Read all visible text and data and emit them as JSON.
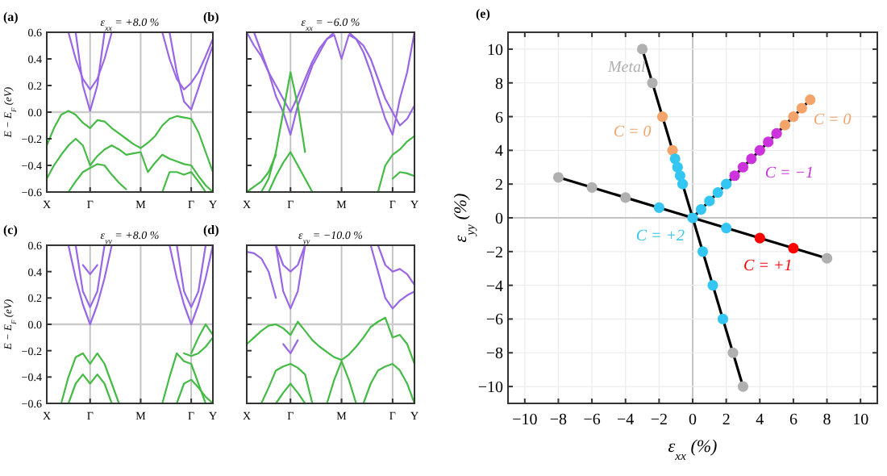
{
  "chart_data": [
    {
      "type": "line",
      "title": "ε$_{xx}$ = +8.0 %",
      "ylabel": "E − E$_{F}$ (eV)",
      "annotations": [
        "(a)"
      ],
      "ylim": [
        -0.6,
        0.6
      ],
      "categories": [
        "X",
        null,
        null,
        null,
        null,
        null,
        "Γ",
        null,
        null,
        null,
        null,
        null,
        null,
        "M",
        null,
        null,
        null,
        null,
        null,
        null,
        "Γ",
        null,
        null,
        "Y"
      ],
      "yticks": [
        {
          "value": -0.6,
          "label": "−0.6"
        },
        {
          "value": -0.4,
          "label": "−0.4"
        },
        {
          "value": -0.2,
          "label": "−0.2"
        },
        {
          "value": 0,
          "label": "0.0"
        },
        {
          "value": 0.2,
          "label": "0.2"
        },
        {
          "value": 0.4,
          "label": "0.4"
        },
        {
          "value": 0.6,
          "label": "0.6"
        }
      ],
      "grid": "x",
      "ref_lines": [
        {
          "axis": "y",
          "value": 0
        }
      ],
      "series": [
        {
          "color": "#44bb44",
          "values": [
            -0.25,
            -0.12,
            -0.02,
            0.01,
            -0.02,
            -0.08,
            -0.12,
            -0.06,
            -0.07,
            -0.12,
            -0.16,
            -0.2,
            -0.24,
            -0.27,
            -0.23,
            -0.18,
            -0.1,
            -0.05,
            -0.03,
            -0.04,
            -0.05,
            -0.15,
            -0.3,
            -0.45
          ]
        },
        {
          "color": "#44bb44",
          "values": [
            -0.5,
            -0.4,
            -0.32,
            -0.25,
            -0.2,
            -0.25,
            -0.4,
            -0.33,
            -0.28,
            -0.25,
            -0.28,
            -0.32,
            -0.31,
            -0.3,
            -0.45,
            -0.38,
            -0.32,
            -0.35,
            -0.37,
            -0.39,
            -0.4,
            -0.48,
            -0.55,
            -0.6
          ]
        },
        {
          "color": "#44bb44",
          "values": [
            null,
            null,
            null,
            -0.6,
            -0.52,
            -0.45,
            -0.42,
            -0.39,
            -0.4,
            -0.47,
            -0.53,
            -0.58,
            null,
            null,
            null,
            null,
            null,
            null,
            null,
            null,
            null,
            null,
            null,
            null
          ]
        },
        {
          "color": "#44bb44",
          "values": [
            null,
            null,
            null,
            null,
            null,
            null,
            null,
            null,
            null,
            null,
            null,
            null,
            null,
            null,
            null,
            null,
            -0.6,
            -0.45,
            -0.45,
            -0.47,
            -0.45,
            -0.52,
            -0.6,
            null
          ]
        },
        {
          "color": "#9966e6",
          "values": [
            null,
            null,
            null,
            0.6,
            0.4,
            0.25,
            0.17,
            0.25,
            0.4,
            0.6,
            null,
            null,
            null,
            null,
            null,
            null,
            null,
            null,
            null,
            null,
            null,
            null,
            null,
            null
          ]
        },
        {
          "color": "#9966e6",
          "values": [
            null,
            null,
            null,
            null,
            0.6,
            0.2,
            0.01,
            0.2,
            0.6,
            null,
            null,
            null,
            null,
            null,
            null,
            null,
            null,
            null,
            null,
            null,
            null,
            null,
            null,
            null
          ]
        },
        {
          "color": "#9966e6",
          "values": [
            null,
            null,
            null,
            null,
            null,
            null,
            null,
            null,
            null,
            null,
            null,
            null,
            null,
            null,
            null,
            null,
            0.6,
            0.4,
            0.25,
            0.17,
            0.22,
            0.3,
            0.42,
            0.55
          ]
        },
        {
          "color": "#9966e6",
          "values": [
            null,
            null,
            null,
            null,
            null,
            null,
            null,
            null,
            null,
            null,
            null,
            null,
            null,
            null,
            null,
            null,
            null,
            0.6,
            0.3,
            0.08,
            0.02,
            0.18,
            0.35,
            0.5
          ]
        }
      ]
    },
    {
      "type": "line",
      "title": "ε$_{xx}$ = −6.0 %",
      "annotations": [
        "(b)"
      ],
      "ylim": [
        -0.6,
        0.6
      ],
      "tick_labels": "x",
      "categories": [
        "X",
        null,
        null,
        null,
        null,
        null,
        "Γ",
        null,
        null,
        null,
        null,
        null,
        null,
        "M",
        null,
        null,
        null,
        null,
        null,
        null,
        "Γ",
        null,
        null,
        "Y"
      ],
      "yticks": [
        {
          "value": -0.6,
          "label": null
        },
        {
          "value": -0.4,
          "label": null
        },
        {
          "value": -0.2,
          "label": null
        },
        {
          "value": 0,
          "label": null
        },
        {
          "value": 0.2,
          "label": null
        },
        {
          "value": 0.4,
          "label": null
        },
        {
          "value": 0.6,
          "label": null
        }
      ],
      "grid": "x",
      "ref_lines": [
        {
          "axis": "y",
          "value": 0
        }
      ],
      "series": [
        {
          "color": "#9966e6",
          "values": [
            0.6,
            0.5,
            0.42,
            0.3,
            0.2,
            0.1,
            0.0,
            0.12,
            0.25,
            0.38,
            0.48,
            0.55,
            0.58,
            0.4,
            0.58,
            0.55,
            0.5,
            0.4,
            0.25,
            0.1,
            0.0,
            -0.1,
            -0.05,
            0.05
          ]
        },
        {
          "color": "#9966e6",
          "values": [
            null,
            0.6,
            0.45,
            0.3,
            0.12,
            0.0,
            -0.17,
            0.05,
            0.2,
            0.35,
            0.45,
            0.55,
            0.6,
            0.6,
            0.6,
            0.55,
            0.45,
            0.3,
            0.12,
            -0.05,
            -0.17,
            0.1,
            0.3,
            0.6
          ]
        },
        {
          "color": "#44bb44",
          "values": [
            null,
            null,
            -0.6,
            -0.5,
            -0.3,
            0.0,
            0.3,
            0.05,
            -0.3,
            null,
            null,
            null,
            null,
            null,
            null,
            null,
            null,
            null,
            null,
            null,
            null,
            null,
            null,
            null
          ]
        },
        {
          "color": "#44bb44",
          "values": [
            null,
            null,
            null,
            -0.6,
            -0.48,
            -0.38,
            -0.3,
            -0.4,
            -0.5,
            -0.6,
            null,
            null,
            null,
            null,
            null,
            null,
            null,
            null,
            null,
            null,
            null,
            null,
            null,
            null
          ]
        },
        {
          "color": "#44bb44",
          "values": [
            -0.6,
            -0.56,
            -0.52,
            -0.45,
            -0.32,
            null,
            null,
            null,
            null,
            null,
            null,
            null,
            null,
            null,
            null,
            null,
            null,
            null,
            null,
            null,
            null,
            null,
            null,
            null
          ]
        },
        {
          "color": "#44bb44",
          "values": [
            null,
            null,
            null,
            null,
            null,
            null,
            null,
            null,
            null,
            null,
            null,
            null,
            null,
            null,
            null,
            null,
            null,
            null,
            -0.6,
            -0.4,
            -0.32,
            -0.28,
            -0.22,
            -0.18
          ]
        },
        {
          "color": "#44bb44",
          "values": [
            null,
            null,
            null,
            null,
            null,
            null,
            null,
            null,
            null,
            null,
            null,
            null,
            null,
            null,
            null,
            null,
            null,
            null,
            null,
            null,
            -0.5,
            -0.45,
            -0.46,
            -0.48
          ]
        }
      ]
    },
    {
      "type": "line",
      "title": "ε$_{yy}$ = +8.0 %",
      "ylabel": "E − E$_{F}$ (eV)",
      "annotations": [
        "(c)"
      ],
      "ylim": [
        -0.6,
        0.6
      ],
      "categories": [
        "X",
        null,
        null,
        null,
        null,
        null,
        "Γ",
        null,
        null,
        null,
        null,
        null,
        null,
        "M",
        null,
        null,
        null,
        null,
        null,
        null,
        "Γ",
        null,
        null,
        "Y"
      ],
      "yticks": [
        {
          "value": -0.6,
          "label": "−0.6"
        },
        {
          "value": -0.4,
          "label": "−0.4"
        },
        {
          "value": -0.2,
          "label": "−0.2"
        },
        {
          "value": 0,
          "label": "0.0"
        },
        {
          "value": 0.2,
          "label": "0.2"
        },
        {
          "value": 0.4,
          "label": "0.4"
        },
        {
          "value": 0.6,
          "label": "0.6"
        }
      ],
      "grid": "x",
      "ref_lines": [
        {
          "axis": "y",
          "value": 0
        }
      ],
      "series": [
        {
          "color": "#9966e6",
          "values": [
            null,
            null,
            null,
            0.6,
            0.35,
            0.15,
            0.0,
            0.15,
            0.35,
            0.6,
            null,
            null,
            null,
            null,
            null,
            null,
            null,
            null,
            null,
            null,
            null,
            null,
            null,
            null
          ]
        },
        {
          "color": "#9966e6",
          "values": [
            null,
            null,
            null,
            null,
            0.6,
            0.25,
            0.13,
            0.25,
            0.6,
            null,
            null,
            null,
            null,
            null,
            null,
            null,
            null,
            null,
            null,
            null,
            null,
            null,
            null,
            null
          ]
        },
        {
          "color": "#9966e6",
          "values": [
            null,
            null,
            null,
            null,
            null,
            0.45,
            0.38,
            0.45,
            null,
            null,
            null,
            null,
            null,
            null,
            null,
            null,
            null,
            null,
            null,
            null,
            null,
            null,
            null,
            null
          ]
        },
        {
          "color": "#9966e6",
          "values": [
            null,
            null,
            null,
            null,
            null,
            null,
            null,
            null,
            null,
            null,
            null,
            null,
            null,
            null,
            null,
            null,
            null,
            0.6,
            0.35,
            0.15,
            0.0,
            0.15,
            0.35,
            0.6
          ]
        },
        {
          "color": "#9966e6",
          "values": [
            null,
            null,
            null,
            null,
            null,
            null,
            null,
            null,
            null,
            null,
            null,
            null,
            null,
            null,
            null,
            null,
            null,
            null,
            0.6,
            0.25,
            0.13,
            0.25,
            0.6,
            null
          ]
        },
        {
          "color": "#44bb44",
          "values": [
            null,
            null,
            -0.6,
            -0.4,
            -0.25,
            -0.22,
            -0.3,
            -0.22,
            -0.3,
            -0.45,
            -0.6,
            null,
            null,
            null,
            null,
            null,
            null,
            null,
            null,
            null,
            null,
            null,
            null,
            null
          ]
        },
        {
          "color": "#44bb44",
          "values": [
            null,
            null,
            null,
            -0.6,
            -0.45,
            -0.38,
            -0.45,
            -0.38,
            -0.45,
            -0.6,
            null,
            null,
            null,
            null,
            null,
            null,
            null,
            null,
            null,
            null,
            null,
            null,
            null,
            null
          ]
        },
        {
          "color": "#44bb44",
          "values": [
            null,
            null,
            null,
            null,
            null,
            null,
            null,
            null,
            null,
            null,
            null,
            null,
            null,
            null,
            null,
            null,
            -0.6,
            -0.4,
            -0.22,
            -0.28,
            -0.3,
            -0.45,
            -0.6,
            null
          ]
        },
        {
          "color": "#44bb44",
          "values": [
            null,
            null,
            null,
            null,
            null,
            null,
            null,
            null,
            null,
            null,
            null,
            null,
            null,
            null,
            null,
            null,
            null,
            null,
            null,
            -0.22,
            -0.24,
            -0.22,
            -0.17,
            -0.1
          ]
        },
        {
          "color": "#44bb44",
          "values": [
            null,
            null,
            null,
            null,
            null,
            null,
            null,
            null,
            null,
            null,
            null,
            null,
            null,
            null,
            null,
            null,
            null,
            null,
            null,
            null,
            -0.22,
            -0.1,
            0.0,
            -0.08
          ]
        },
        {
          "color": "#44bb44",
          "values": [
            null,
            null,
            null,
            null,
            null,
            null,
            null,
            null,
            null,
            null,
            null,
            null,
            null,
            null,
            null,
            null,
            null,
            null,
            -0.6,
            -0.45,
            -0.42,
            -0.48,
            -0.55,
            -0.6
          ]
        }
      ]
    },
    {
      "type": "line",
      "title": "ε$_{yy}$ = −10.0 %",
      "annotations": [
        "(d)"
      ],
      "ylim": [
        -0.6,
        0.6
      ],
      "tick_labels": "x",
      "categories": [
        "X",
        null,
        null,
        null,
        null,
        null,
        "Γ",
        null,
        null,
        null,
        null,
        null,
        null,
        "M",
        null,
        null,
        null,
        null,
        null,
        null,
        "Γ",
        null,
        null,
        "Y"
      ],
      "yticks": [
        {
          "value": -0.6,
          "label": null
        },
        {
          "value": -0.4,
          "label": null
        },
        {
          "value": -0.2,
          "label": null
        },
        {
          "value": 0,
          "label": null
        },
        {
          "value": 0.2,
          "label": null
        },
        {
          "value": 0.4,
          "label": null
        },
        {
          "value": 0.6,
          "label": null
        }
      ],
      "grid": "x",
      "ref_lines": [
        {
          "axis": "y",
          "value": 0
        }
      ],
      "series": [
        {
          "color": "#44bb44",
          "values": [
            -0.15,
            -0.1,
            -0.05,
            -0.01,
            0.0,
            -0.03,
            -0.08,
            0.02,
            -0.05,
            -0.12,
            -0.17,
            -0.21,
            -0.25,
            -0.27,
            -0.23,
            -0.17,
            -0.1,
            -0.02,
            0.02,
            0.05,
            -0.1,
            -0.08,
            -0.15,
            -0.3
          ]
        },
        {
          "color": "#44bb44",
          "values": [
            null,
            null,
            -0.6,
            -0.48,
            -0.35,
            -0.32,
            -0.3,
            -0.33,
            -0.38,
            -0.6,
            null,
            null,
            null,
            null,
            null,
            null,
            null,
            null,
            null,
            null,
            null,
            null,
            null,
            null
          ]
        },
        {
          "color": "#44bb44",
          "values": [
            null,
            null,
            null,
            null,
            null,
            null,
            null,
            null,
            null,
            null,
            null,
            -0.6,
            -0.42,
            -0.28,
            -0.42,
            -0.6,
            null,
            null,
            null,
            null,
            null,
            null,
            null,
            null
          ]
        },
        {
          "color": "#44bb44",
          "values": [
            null,
            null,
            null,
            null,
            null,
            null,
            null,
            null,
            null,
            null,
            null,
            null,
            null,
            null,
            null,
            null,
            -0.6,
            -0.45,
            -0.35,
            -0.32,
            -0.3,
            -0.35,
            -0.45,
            -0.6
          ]
        },
        {
          "color": "#44bb44",
          "values": [
            null,
            null,
            null,
            null,
            -0.6,
            -0.52,
            -0.45,
            -0.52,
            -0.6,
            null,
            null,
            null,
            null,
            null,
            null,
            null,
            null,
            null,
            null,
            null,
            null,
            null,
            null,
            null
          ]
        },
        {
          "color": "#9966e6",
          "values": [
            0.55,
            0.54,
            0.5,
            0.4,
            0.2,
            null,
            null,
            null,
            null,
            null,
            null,
            null,
            null,
            null,
            null,
            null,
            null,
            null,
            null,
            null,
            null,
            null,
            null,
            null
          ]
        },
        {
          "color": "#9966e6",
          "values": [
            null,
            null,
            null,
            null,
            0.6,
            0.25,
            0.12,
            0.25,
            0.6,
            null,
            null,
            null,
            null,
            null,
            null,
            null,
            null,
            null,
            null,
            null,
            null,
            null,
            null,
            null
          ]
        },
        {
          "color": "#9966e6",
          "values": [
            null,
            null,
            null,
            null,
            0.6,
            0.45,
            0.4,
            0.45,
            0.6,
            null,
            null,
            null,
            null,
            null,
            null,
            null,
            null,
            null,
            null,
            null,
            null,
            null,
            null,
            null
          ]
        },
        {
          "color": "#9966e6",
          "values": [
            null,
            null,
            null,
            null,
            null,
            null,
            null,
            null,
            null,
            null,
            null,
            null,
            null,
            null,
            null,
            null,
            null,
            0.6,
            0.4,
            0.2,
            0.12,
            0.18,
            0.22,
            0.25
          ]
        },
        {
          "color": "#9966e6",
          "values": [
            null,
            null,
            null,
            null,
            null,
            null,
            null,
            null,
            null,
            null,
            null,
            null,
            null,
            null,
            null,
            null,
            null,
            null,
            0.6,
            0.45,
            0.4,
            0.42,
            0.38,
            0.3
          ]
        },
        {
          "color": "#9966e6",
          "values": [
            null,
            null,
            null,
            null,
            null,
            -0.15,
            -0.22,
            -0.12,
            null,
            null,
            null,
            null,
            null,
            null,
            null,
            null,
            null,
            null,
            null,
            null,
            null,
            null,
            null,
            null
          ]
        }
      ]
    },
    {
      "type": "scatter",
      "xlabel": "ε$_{xx}$ (%)",
      "ylabel": "ε$_{yy}$ (%)",
      "annotations": [
        "(e)"
      ],
      "xlim": [
        -11,
        11
      ],
      "ylim": [
        -11,
        11
      ],
      "marker": "circle",
      "grid": true,
      "xticks": [
        {
          "value": -10,
          "label": "−10"
        },
        {
          "value": -8,
          "label": "−8"
        },
        {
          "value": -6,
          "label": "−6"
        },
        {
          "value": -4,
          "label": "−4"
        },
        {
          "value": -2,
          "label": "−2"
        },
        0,
        2,
        4,
        6,
        8,
        10
      ],
      "yticks": [
        {
          "value": -10,
          "label": "−10"
        },
        {
          "value": -8,
          "label": "−8"
        },
        {
          "value": -6,
          "label": "−6"
        },
        {
          "value": -4,
          "label": "−4"
        },
        {
          "value": -2,
          "label": "−2"
        },
        0,
        2,
        4,
        6,
        8,
        10
      ],
      "series": [
        {
          "type": "line",
          "marker": "none",
          "color": "#000000",
          "x": [
            -3,
            3
          ],
          "values": [
            10,
            -10
          ]
        },
        {
          "type": "line",
          "marker": "none",
          "color": "#000000",
          "x": [
            -8,
            8
          ],
          "values": [
            2.4,
            -2.4
          ]
        },
        {
          "type": "line",
          "marker": "none",
          "color": "#000000",
          "x": [
            0,
            7
          ],
          "values": [
            0,
            7
          ]
        },
        {
          "name": "Metal",
          "color": "#b0b0b0",
          "x": [
            -3,
            -2.4,
            -8,
            -6,
            -4,
            8,
            2.4,
            3
          ],
          "values": [
            10,
            8,
            2.4,
            1.8,
            1.2,
            -2.4,
            -8,
            -10
          ]
        },
        {
          "name": "C = 0",
          "color": "#f4a46a",
          "x": [
            -1.8,
            -1.2
          ],
          "values": [
            6,
            4
          ]
        },
        {
          "name": "C = +2",
          "color": "#33c6f2",
          "x": [
            -1.05,
            -0.9,
            -0.75,
            -0.6,
            0,
            0.6,
            1.2,
            1.8,
            -2,
            2
          ],
          "values": [
            3.5,
            3,
            2.5,
            2,
            0,
            -2,
            -4,
            -6,
            0.6,
            -0.6
          ]
        },
        {
          "name": "C = +1",
          "color": "#ff0000",
          "x": [
            4,
            6
          ],
          "values": [
            -1.2,
            -1.8
          ]
        },
        {
          "name": "C = −1",
          "color": "#cc33dd",
          "x": [
            2.5,
            3,
            3.5,
            4,
            4.5,
            5
          ],
          "values": [
            2.5,
            3,
            3.5,
            4,
            4.5,
            5
          ]
        },
        {
          "name": "C = 0",
          "color": "#f4a46a",
          "x": [
            5.5,
            6,
            6.5,
            7
          ],
          "values": [
            5.5,
            6,
            6.5,
            7
          ]
        },
        {
          "color": "#33c6f2",
          "x": [
            0.5,
            1,
            1.5,
            2
          ],
          "values": [
            0.5,
            1,
            1.5,
            2
          ]
        }
      ]
    }
  ]
}
